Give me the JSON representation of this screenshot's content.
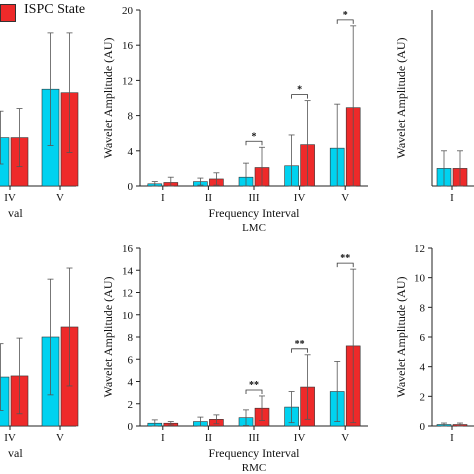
{
  "legend": {
    "items": [
      {
        "label": "ISPC State",
        "color": "#ee2a2a"
      }
    ]
  },
  "colors": {
    "series_a": "#00d2f0",
    "series_b": "#ee2a2a",
    "axis": "#222222",
    "error": "#555555"
  },
  "chart_data": [
    {
      "panel": "left-top",
      "type": "bar",
      "categories": [
        "IV",
        "V"
      ],
      "series": [
        {
          "values": [
            5.5,
            11.0
          ],
          "errors": [
            3.0,
            6.4
          ]
        },
        {
          "name": "ISPC State",
          "values": [
            5.5,
            10.6
          ],
          "errors": [
            3.3,
            6.8
          ]
        }
      ],
      "xlabel": "val",
      "ylim": [
        0,
        20
      ]
    },
    {
      "panel": "center-top",
      "type": "bar",
      "title": "LMC",
      "categories": [
        "I",
        "II",
        "III",
        "IV",
        "V"
      ],
      "series": [
        {
          "values": [
            0.25,
            0.5,
            1.0,
            2.3,
            4.3
          ],
          "errors": [
            0.25,
            0.4,
            1.6,
            3.5,
            5.0
          ]
        },
        {
          "name": "ISPC State",
          "values": [
            0.4,
            0.8,
            2.1,
            4.7,
            8.9
          ],
          "errors": [
            0.6,
            0.7,
            2.3,
            5.0,
            9.3
          ]
        }
      ],
      "significance": [
        "",
        "",
        "*",
        "*",
        "*"
      ],
      "xlabel": "Frequency Interval",
      "ylabel": "Wavelet Amplitude (AU)",
      "ylim": [
        0,
        20
      ],
      "yticks": [
        0,
        4,
        8,
        12,
        16,
        20
      ]
    },
    {
      "panel": "right-top",
      "type": "bar",
      "categories": [
        "I"
      ],
      "series": [
        {
          "values": [
            0.1
          ],
          "errors": [
            0.1
          ]
        },
        {
          "name": "ISPC State",
          "values": [
            0.1
          ],
          "errors": [
            0.1
          ]
        }
      ],
      "ylabel": "Wavelet Amplitude (AU)"
    },
    {
      "panel": "left-bottom",
      "type": "bar",
      "categories": [
        "IV",
        "V"
      ],
      "series": [
        {
          "values": [
            4.4,
            8.0
          ],
          "errors": [
            3.0,
            5.2
          ]
        },
        {
          "name": "ISPC State",
          "values": [
            4.5,
            8.9
          ],
          "errors": [
            3.4,
            5.3
          ]
        }
      ],
      "xlabel": "val",
      "ylim": [
        0,
        16
      ]
    },
    {
      "panel": "center-bottom",
      "type": "bar",
      "title": "RMC",
      "categories": [
        "I",
        "II",
        "III",
        "IV",
        "V"
      ],
      "series": [
        {
          "values": [
            0.25,
            0.4,
            0.75,
            1.7,
            3.1
          ],
          "errors": [
            0.3,
            0.4,
            0.7,
            1.4,
            2.7
          ]
        },
        {
          "name": "ISPC State",
          "values": [
            0.25,
            0.6,
            1.6,
            3.5,
            7.2
          ],
          "errors": [
            0.15,
            0.4,
            1.1,
            2.9,
            6.9
          ]
        }
      ],
      "significance": [
        "",
        "",
        "**",
        "**",
        "**"
      ],
      "xlabel": "Frequency Interval",
      "ylabel": "Wavelet Amplitude (AU)",
      "ylim": [
        0,
        16
      ],
      "yticks": [
        0,
        2,
        4,
        6,
        8,
        10,
        12,
        14,
        16
      ]
    },
    {
      "panel": "right-bottom",
      "type": "bar",
      "categories": [
        "I"
      ],
      "series": [
        {
          "values": [
            0.1
          ],
          "errors": [
            0.1
          ]
        },
        {
          "name": "ISPC State",
          "values": [
            0.1
          ],
          "errors": [
            0.1
          ]
        }
      ],
      "ylabel": "Wavelet Amplitude (AU)",
      "ylim": [
        0,
        12
      ],
      "yticks": [
        0,
        2,
        4,
        6,
        8,
        10,
        12
      ]
    }
  ]
}
